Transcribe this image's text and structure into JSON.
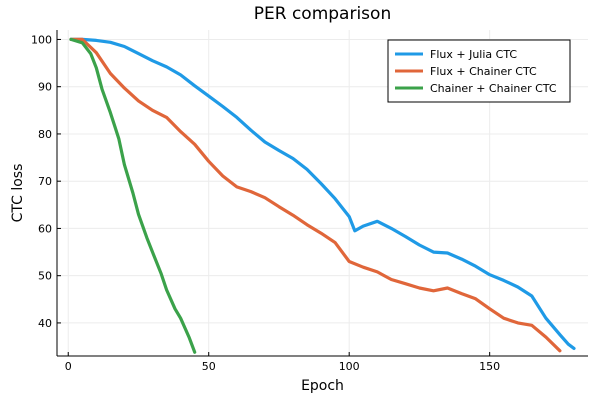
{
  "chart_data": {
    "type": "line",
    "title": "PER comparison",
    "xlabel": "Epoch",
    "ylabel": "CTC loss",
    "xlim": [
      -4,
      185
    ],
    "ylim": [
      33,
      102
    ],
    "xticks": [
      0,
      50,
      100,
      150
    ],
    "yticks": [
      40,
      50,
      60,
      70,
      80,
      90,
      100
    ],
    "grid": true,
    "legend_position": "top-right",
    "series": [
      {
        "name": "Flux + Julia CTC",
        "color": "#1f9ae6",
        "x": [
          1,
          5,
          10,
          15,
          20,
          25,
          30,
          35,
          40,
          45,
          50,
          55,
          60,
          65,
          70,
          75,
          80,
          85,
          90,
          95,
          100,
          102,
          105,
          110,
          115,
          120,
          125,
          130,
          135,
          140,
          145,
          150,
          155,
          160,
          165,
          170,
          175,
          178,
          180
        ],
        "y": [
          100,
          100,
          99.8,
          99.4,
          98.5,
          97,
          95.5,
          94.2,
          92.5,
          90.2,
          88,
          85.8,
          83.5,
          80.8,
          78.3,
          76.5,
          74.8,
          72.5,
          69.5,
          66.3,
          62.5,
          59.5,
          60.5,
          61.5,
          60,
          58.3,
          56.5,
          55,
          54.8,
          53.5,
          52,
          50.2,
          49,
          47.6,
          45.7,
          41,
          37.5,
          35.5,
          34.6
        ]
      },
      {
        "name": "Flux + Chainer CTC",
        "color": "#e0663a",
        "x": [
          1,
          5,
          10,
          15,
          20,
          25,
          30,
          35,
          40,
          45,
          50,
          55,
          60,
          65,
          70,
          75,
          80,
          85,
          90,
          95,
          100,
          105,
          110,
          115,
          120,
          125,
          130,
          135,
          140,
          145,
          150,
          155,
          160,
          165,
          170,
          175
        ],
        "y": [
          100,
          100,
          97.2,
          92.8,
          89.7,
          87,
          85,
          83.5,
          80.5,
          77.8,
          74.2,
          71.1,
          68.8,
          67.8,
          66.5,
          64.6,
          62.8,
          60.8,
          59,
          57,
          53,
          51.8,
          50.8,
          49.2,
          48.3,
          47.4,
          46.8,
          47.4,
          46.2,
          45.1,
          43,
          41,
          40,
          39.5,
          37,
          34.1
        ]
      },
      {
        "name": "Chainer + Chainer CTC",
        "color": "#3ba24a",
        "x": [
          1,
          5,
          8,
          10,
          12,
          15,
          18,
          20,
          23,
          25,
          28,
          30,
          33,
          35,
          38,
          40,
          43,
          45
        ],
        "y": [
          100,
          99.3,
          97,
          94,
          89.5,
          84.5,
          79,
          73.5,
          67.5,
          63,
          58,
          55,
          50.5,
          47,
          43,
          41,
          37,
          33.8
        ]
      }
    ]
  }
}
